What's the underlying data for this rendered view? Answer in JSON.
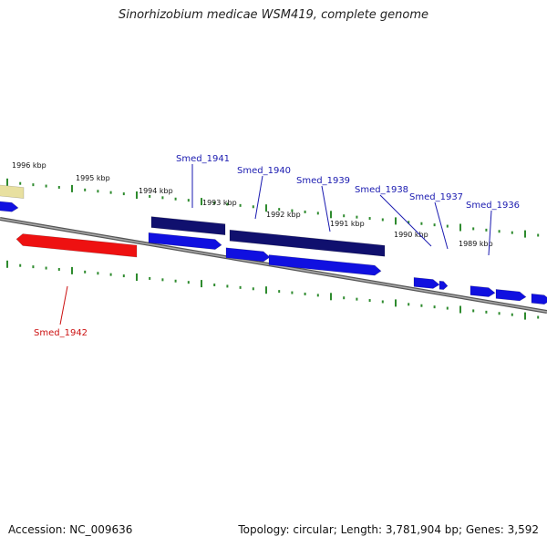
{
  "title": "Sinorhizobium medicae WSM419, complete genome",
  "footer": {
    "accession": "Accession: NC_009636",
    "summary": "Topology: circular; Length: 3,781,904 bp; Genes: 3,592"
  },
  "colors": {
    "backbone": "#777777",
    "tick": "#2e8b2e",
    "gene_forward": "#1010e0",
    "gene_cds": "#10106e",
    "gene_highlight": "#ee1111",
    "gene_other": "#e8e0a0",
    "label_blue": "#1a1ab0",
    "label_red": "#cc1111"
  },
  "scale_labels": [
    "1996 kbp",
    "1995 kbp",
    "1994 kbp",
    "1993 kbp",
    "1992 kbp",
    "1991 kbp",
    "1990 kbp",
    "1989 kbp"
  ],
  "gene_labels": [
    {
      "text": "Smed_1941",
      "color": "blue"
    },
    {
      "text": "Smed_1940",
      "color": "blue"
    },
    {
      "text": "Smed_1939",
      "color": "blue"
    },
    {
      "text": "Smed_1938",
      "color": "blue"
    },
    {
      "text": "Smed_1937",
      "color": "blue"
    },
    {
      "text": "Smed_1936",
      "color": "blue"
    },
    {
      "text": "Smed_1942",
      "color": "red"
    }
  ]
}
